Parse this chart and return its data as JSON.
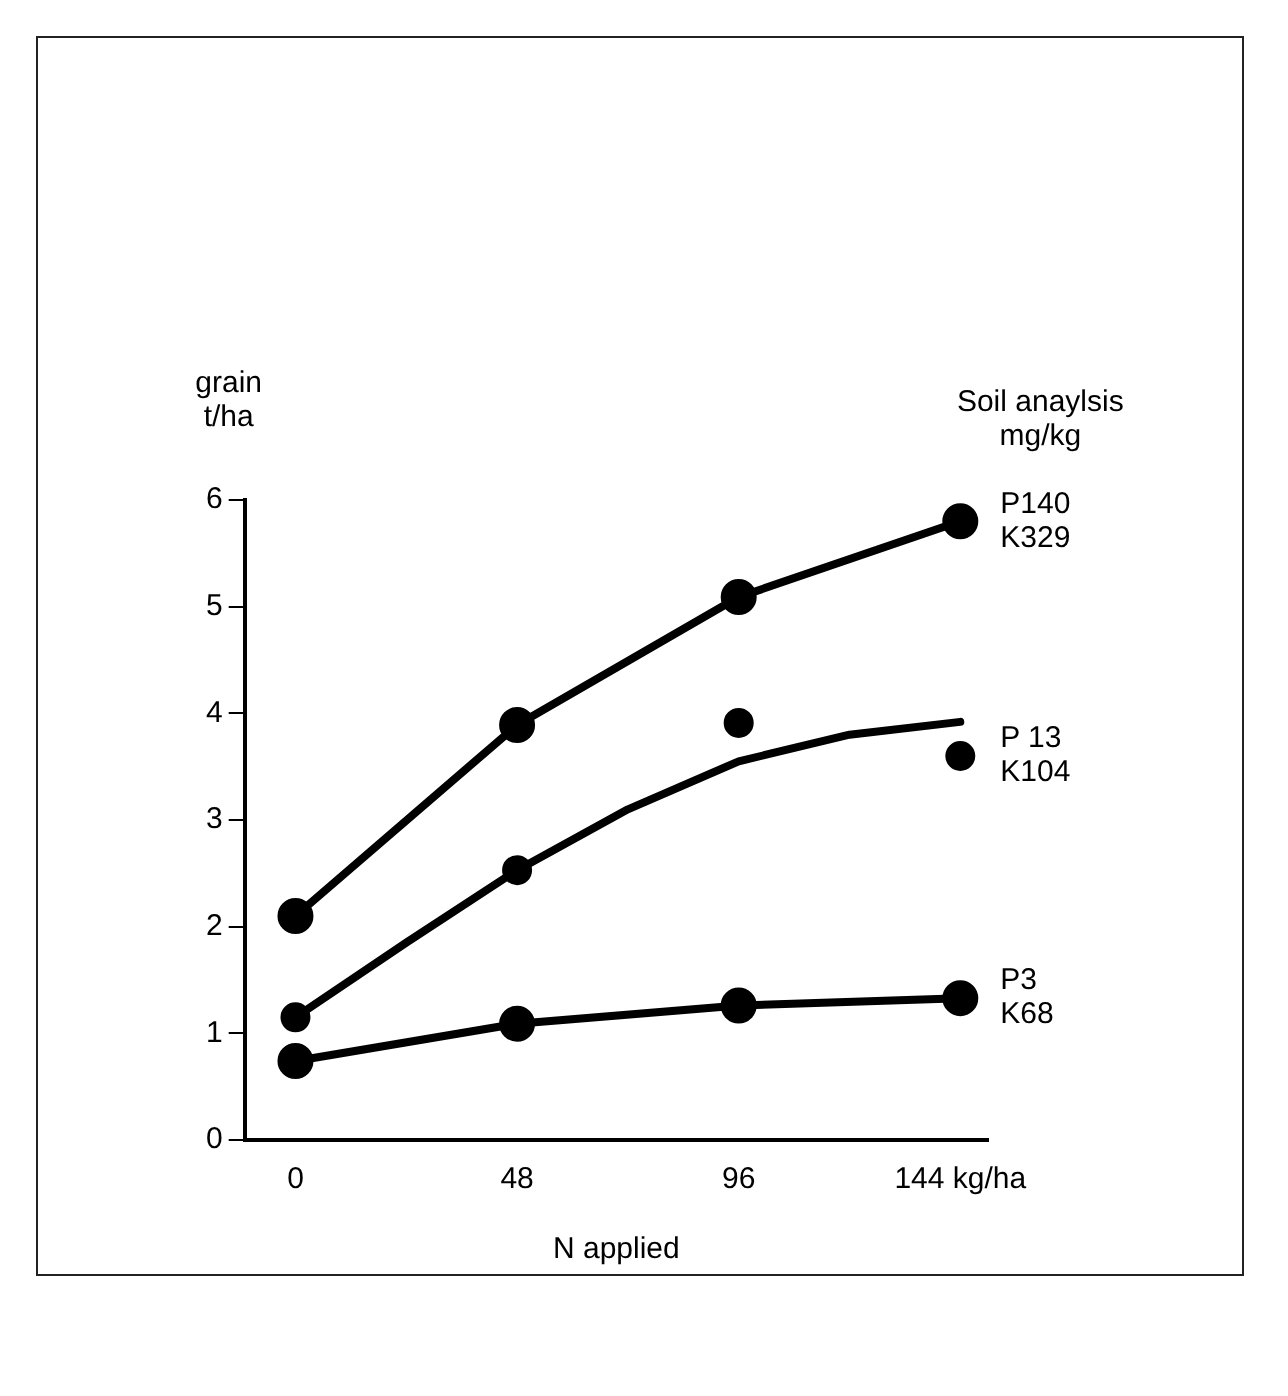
{
  "chart_data": {
    "type": "line",
    "xlabel": "N applied",
    "ylabel": "grain\nt/ha",
    "legend_title": "Soil anaylsis\nmg/kg",
    "x": [
      0,
      48,
      96,
      144
    ],
    "xlim": [
      -11,
      150
    ],
    "xticks": [
      0,
      48,
      96,
      {
        "value": 144,
        "label": "144 kg/ha"
      }
    ],
    "ylim": [
      0,
      6
    ],
    "yticks": [
      0,
      1,
      2,
      3,
      4,
      5,
      6
    ],
    "grid": false,
    "legend": false,
    "marker": "circle",
    "line_style": "solid",
    "series": [
      {
        "name": "P140\nK329",
        "color": "#000000",
        "values": [
          2.1,
          3.89,
          5.09,
          5.8
        ]
      },
      {
        "name": "P 13\nK104",
        "type": "scatter",
        "color": "#000000",
        "values": [
          1.15,
          2.53,
          3.91,
          3.6
        ]
      },
      {
        "type": "line",
        "color": "#000000",
        "marker": "none",
        "x": [
          0,
          24,
          48,
          72,
          96,
          120,
          144
        ],
        "values": [
          1.15,
          1.85,
          2.53,
          3.1,
          3.55,
          3.8,
          3.92
        ]
      },
      {
        "name": "P3\nK68",
        "color": "#000000",
        "values": [
          0.74,
          1.09,
          1.26,
          1.33
        ]
      }
    ]
  }
}
